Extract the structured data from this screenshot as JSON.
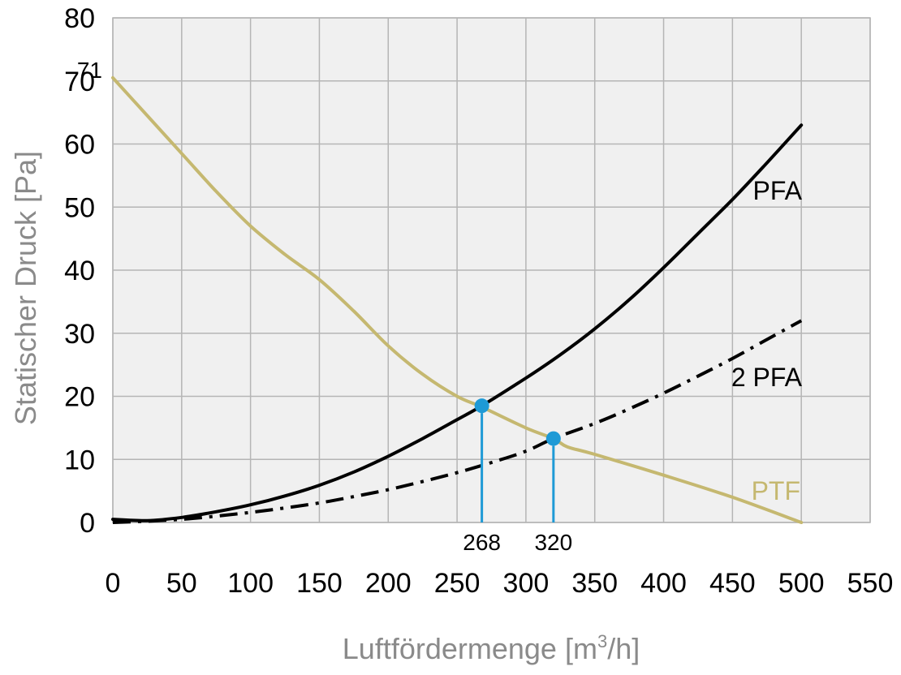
{
  "chart_data": {
    "type": "line",
    "xlabel": "Luftfördermenge [m³/h]",
    "xlabel_parts": [
      "Luftfördermenge [m",
      "3",
      "/h]"
    ],
    "ylabel": "Statischer Druck [Pa]",
    "xlim": [
      0,
      550
    ],
    "ylim": [
      0,
      80
    ],
    "x_ticks": [
      "0",
      "50",
      "100",
      "150",
      "200",
      "250",
      "300",
      "350",
      "400",
      "450",
      "500",
      "550"
    ],
    "y_ticks": [
      "0",
      "10",
      "20",
      "30",
      "40",
      "50",
      "60",
      "70",
      "80"
    ],
    "y_extra_tick": {
      "label": "71",
      "value": 71
    },
    "grid": true,
    "series": [
      {
        "name": "PTF",
        "color": "#c5b870",
        "style": "solid",
        "x": [
          0,
          25,
          50,
          75,
          100,
          125,
          150,
          175,
          200,
          225,
          250,
          268,
          300,
          320,
          330,
          350,
          400,
          450,
          500
        ],
        "y": [
          70.5,
          64.5,
          58.5,
          52.5,
          47,
          42.5,
          38.5,
          33.5,
          28,
          23.5,
          20,
          18.3,
          15,
          13.3,
          12,
          10.8,
          7.5,
          4,
          0
        ]
      },
      {
        "name": "PFA",
        "color": "#000000",
        "style": "solid",
        "x": [
          0,
          25,
          50,
          75,
          100,
          125,
          150,
          175,
          200,
          225,
          250,
          268,
          300,
          325,
          350,
          375,
          400,
          425,
          450,
          475,
          500
        ],
        "y": [
          0.5,
          0.3,
          0.8,
          1.7,
          2.8,
          4.2,
          5.9,
          8.0,
          10.5,
          13.3,
          16.3,
          18.5,
          22.9,
          26.6,
          30.7,
          35.3,
          40.4,
          45.8,
          51.2,
          57.0,
          63.0
        ]
      },
      {
        "name": "2 PFA",
        "color": "#000000",
        "style": "dashdot",
        "x": [
          0,
          25,
          50,
          75,
          100,
          125,
          150,
          175,
          200,
          225,
          250,
          275,
          300,
          320,
          350,
          375,
          400,
          425,
          450,
          475,
          500
        ],
        "y": [
          0,
          0.2,
          0.5,
          1.0,
          1.6,
          2.3,
          3.1,
          4.1,
          5.2,
          6.5,
          7.9,
          9.5,
          11.3,
          13.3,
          15.7,
          18.0,
          20.5,
          23.2,
          26.0,
          29.0,
          32.0
        ]
      }
    ],
    "markers": [
      {
        "label": "268",
        "x": 268,
        "y": 18.5,
        "color": "#1e9ad6"
      },
      {
        "label": "320",
        "x": 320,
        "y": 13.3,
        "color": "#1e9ad6"
      }
    ],
    "colors": {
      "plot_background": "#f0f0f0",
      "grid": "#b5b5b5",
      "axis_title": "#8a8a8a",
      "marker": "#1e9ad6",
      "ptf": "#c5b870"
    }
  }
}
